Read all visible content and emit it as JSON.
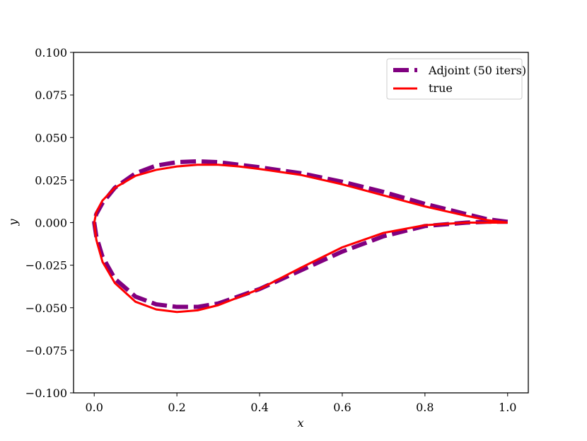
{
  "chart_data": {
    "type": "line",
    "xlabel": "x",
    "ylabel": "y",
    "xlim": [
      -0.05,
      1.05
    ],
    "ylim": [
      -0.1,
      0.1
    ],
    "xticks": [
      0.0,
      0.2,
      0.4,
      0.6,
      0.8,
      1.0
    ],
    "xtick_labels": [
      "0.0",
      "0.2",
      "0.4",
      "0.6",
      "0.8",
      "1.0"
    ],
    "yticks": [
      -0.1,
      -0.075,
      -0.05,
      -0.025,
      0.0,
      0.025,
      0.05,
      0.075,
      0.1
    ],
    "ytick_labels": [
      "−0.100",
      "−0.075",
      "−0.050",
      "−0.025",
      "0.000",
      "0.025",
      "0.050",
      "0.075",
      "0.100"
    ],
    "grid": false,
    "legend_position": "top-right",
    "series": [
      {
        "name": "Adjoint (50 iters)",
        "color": "#800080",
        "style": "dashed",
        "x": [
          1.0,
          0.95,
          0.9,
          0.8,
          0.7,
          0.6,
          0.5,
          0.4,
          0.3,
          0.25,
          0.2,
          0.15,
          0.1,
          0.05,
          0.02,
          0.005,
          0.0,
          0.005,
          0.02,
          0.05,
          0.1,
          0.15,
          0.2,
          0.25,
          0.3,
          0.4,
          0.5,
          0.6,
          0.7,
          0.8,
          0.9,
          0.95,
          1.0
        ],
        "y": [
          0.0005,
          0.002,
          0.005,
          0.011,
          0.018,
          0.024,
          0.029,
          0.0325,
          0.0355,
          0.036,
          0.0355,
          0.0335,
          0.029,
          0.0205,
          0.0115,
          0.005,
          0.0,
          -0.008,
          -0.02,
          -0.033,
          -0.0435,
          -0.048,
          -0.0495,
          -0.0495,
          -0.0475,
          -0.039,
          -0.028,
          -0.017,
          -0.008,
          -0.002,
          0.0,
          0.0005,
          0.0005
        ]
      },
      {
        "name": "true",
        "color": "#ff0000",
        "style": "solid",
        "x": [
          1.0,
          0.95,
          0.9,
          0.8,
          0.7,
          0.6,
          0.5,
          0.4,
          0.35,
          0.3,
          0.25,
          0.2,
          0.15,
          0.1,
          0.05,
          0.02,
          0.005,
          0.0,
          0.005,
          0.02,
          0.05,
          0.1,
          0.15,
          0.2,
          0.25,
          0.3,
          0.4,
          0.5,
          0.6,
          0.7,
          0.8,
          0.9,
          0.95,
          1.0
        ],
        "y": [
          0.0,
          0.0015,
          0.004,
          0.0095,
          0.016,
          0.0225,
          0.028,
          0.0315,
          0.033,
          0.034,
          0.034,
          0.033,
          0.031,
          0.0275,
          0.0205,
          0.013,
          0.006,
          0.0,
          -0.01,
          -0.023,
          -0.0355,
          -0.0465,
          -0.051,
          -0.0525,
          -0.0515,
          -0.0485,
          -0.039,
          -0.0265,
          -0.0145,
          -0.006,
          -0.0015,
          0.0,
          0.0,
          0.0
        ]
      }
    ]
  }
}
